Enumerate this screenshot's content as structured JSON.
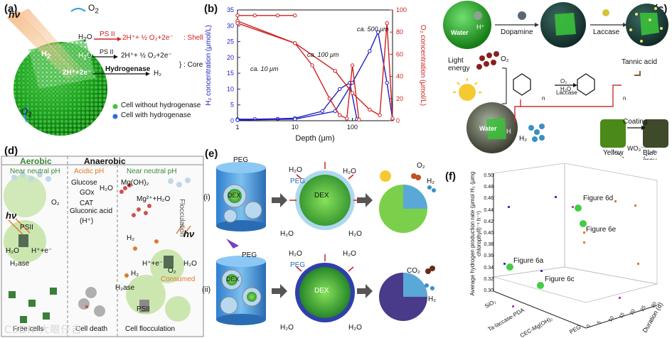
{
  "panel_labels": {
    "a": "(a)",
    "b": "(b)",
    "c": "(c)",
    "d": "(d)",
    "e": "(e)",
    "f": "(f)"
  },
  "panel_a": {
    "hv": "hν",
    "o2_top": "O",
    "o2_left": "O",
    "h2": "H",
    "h2o_1": "H",
    "h2o_2": "H",
    "psii": "PS II",
    "psii_core": "PS II",
    "hydrogenase": "Hydrogenase",
    "eq_shell": "2H⁺+ ½ O₂+2e⁻",
    "shell": ": Shell",
    "eq_core": "2H⁺+ ½ O₂+2e⁻",
    "core": "} : Core",
    "core_h": "2H⁺+2e⁻",
    "core_h2": "H₂",
    "legend_without": "Cell without hydrogenase",
    "legend_with": "Cell with hydrogenase"
  },
  "chart_data": {
    "type": "line",
    "xlabel": "Depth (μm)",
    "ylabel": "H₂ concentration (μmol/L)",
    "ylabel_right": "O₂ concentration (μmol/L)",
    "xscale": "log",
    "xlim": [
      1,
      500
    ],
    "ylim": [
      0,
      35
    ],
    "ylim_right": [
      0,
      100
    ],
    "xticks": [
      "1",
      "10",
      "100"
    ],
    "yticks": [
      "0",
      "5",
      "10",
      "15",
      "20",
      "25",
      "30",
      "35"
    ],
    "yticks_right": [
      "0",
      "20",
      "40",
      "60",
      "80",
      "100"
    ],
    "annotations": [
      "ca. 10 μm",
      "ca. 100 μm",
      "ca. 500 μm"
    ],
    "series": [
      {
        "name": "H2 ca.10um",
        "axis": "left",
        "color": "#2020c0",
        "x": [
          1,
          2,
          5,
          10
        ],
        "values": [
          0.5,
          0.5,
          0.6,
          0.7
        ]
      },
      {
        "name": "H2 ca.100um",
        "axis": "left",
        "color": "#2020c0",
        "x": [
          1,
          10,
          30,
          60,
          90,
          120
        ],
        "values": [
          0.2,
          0.8,
          3,
          10,
          12,
          0.5
        ]
      },
      {
        "name": "H2 ca.500um",
        "axis": "left",
        "color": "#2020c0",
        "x": [
          1,
          10,
          50,
          100,
          200,
          280,
          400,
          500
        ],
        "values": [
          0.2,
          0.5,
          3,
          12,
          22,
          28,
          12,
          0.5
        ]
      },
      {
        "name": "O2 ca.10um",
        "axis": "right",
        "color": "#d02020",
        "x": [
          1,
          2,
          5,
          10
        ],
        "values": [
          95,
          95,
          95,
          95
        ]
      },
      {
        "name": "O2 ca.100um",
        "axis": "right",
        "color": "#d02020",
        "x": [
          1,
          10,
          20,
          40,
          60,
          80,
          100,
          130
        ],
        "values": [
          90,
          70,
          50,
          20,
          5,
          2,
          50,
          1
        ]
      },
      {
        "name": "O2 ca.500um",
        "axis": "right",
        "color": "#d02020",
        "x": [
          1,
          10,
          50,
          100,
          200,
          300,
          400,
          500
        ],
        "values": [
          88,
          70,
          45,
          25,
          10,
          5,
          88,
          2
        ]
      }
    ]
  },
  "panel_c": {
    "water": "Water",
    "h_plus": "H⁺",
    "dopamine": "Dopamine",
    "laccase": "Laccase",
    "light": "Light energy",
    "tannic": "Tannic acid",
    "o2": "O₂",
    "h2o": "H₂O",
    "laccase_small": "Laccase",
    "n": "n",
    "coating": "Coating",
    "yellow": "Yellow",
    "blue_gray": "Blue gray",
    "wo": "WO₃⁻",
    "h2": "H₂",
    "water2": "Water",
    "h2_2": "H"
  },
  "panel_d": {
    "aerobic": "Aerobic",
    "anaerobic": "Anaerobic",
    "neutral1": "Near neutral pH",
    "acidic": "Acidic pH",
    "neutral2": "Near neutral pH",
    "glucose": "Glucose",
    "gox": "GOx",
    "cat": "CAT",
    "gluconic": "Gluconic acid",
    "hplus": "(H⁺)",
    "h2o": "H₂O",
    "mgoh": "Mg(OH)₂",
    "mg": "Mg²⁺+H₂O",
    "flocculation": "Flocculation",
    "consumed": "Consumed",
    "o2": "O₂",
    "psii": "PSII",
    "h2o_l": "H₂O",
    "h2ase": "H₂ase",
    "h_e": "H⁺+e⁻",
    "h2": "H₂",
    "hv": "hν",
    "h2ase2": "H₂ase",
    "h_e2": "H⁺+e⁻",
    "o2b": "O₂",
    "h2o_r": "H₂O",
    "psii2": "PSII",
    "h2b": "H₂",
    "free": "Free cells",
    "death": "Cell death",
    "floc": "Cell flocculation"
  },
  "panel_e": {
    "i": "(i)",
    "ii": "(ii)",
    "peg1": "PEG",
    "dex1": "DEX",
    "peg2": "PEG",
    "dex2": "DEX",
    "peg3": "PEG",
    "dex3": "DEX",
    "peg4": "PEG",
    "dex4": "DEX",
    "h2o": "H₂O",
    "o2": "O₂",
    "h2": "H₂",
    "co2": "CO₂"
  },
  "panel_f": {
    "ylabel": "Average hydrogen production rate (μmol H₂ (μmg chlorophyll)⁻¹ h⁻¹)",
    "yticks": [
      "0.30",
      "0.32",
      "0.34",
      "0.36",
      "0.38",
      "0.40",
      "0.42",
      "0.44",
      "0.46",
      "0.48",
      "0.50"
    ],
    "xcats": [
      "SiO₂",
      "Ta-laccase-PDA",
      "CEC-Mg(OH)₂",
      "PEG"
    ],
    "zlabel": "Duration (d)",
    "zticks": [
      "0",
      "5",
      "10",
      "15",
      "20",
      "25",
      "30"
    ],
    "labels": [
      "Figure 6d",
      "Figure 6e",
      "Figure 6a",
      "Figure 6c"
    ]
  },
  "watermark": "CSDN 大眼仔吉"
}
